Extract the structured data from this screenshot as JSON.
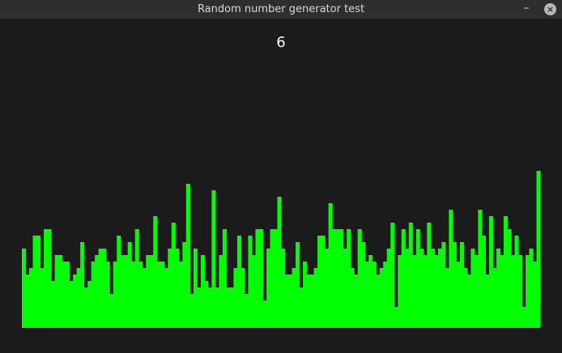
{
  "window": {
    "title": "Random number generator test",
    "minimize_glyph": "–",
    "close_glyph": "×"
  },
  "display": {
    "current_value": "6"
  },
  "colors": {
    "background": "#1b1b1b",
    "titlebar": "#2e2e2e",
    "bar": "#00ff00",
    "baseline": "#9a9a9a"
  },
  "chart_data": {
    "type": "bar",
    "title": "",
    "xlabel": "",
    "ylabel": "",
    "ylim": [
      0,
      200
    ],
    "values": [
      97,
      65,
      73,
      113,
      113,
      73,
      121,
      121,
      57,
      89,
      89,
      81,
      81,
      57,
      65,
      73,
      105,
      49,
      57,
      81,
      89,
      97,
      97,
      81,
      41,
      81,
      113,
      89,
      89,
      105,
      81,
      121,
      81,
      73,
      89,
      89,
      137,
      81,
      81,
      73,
      97,
      129,
      97,
      81,
      105,
      177,
      41,
      97,
      49,
      89,
      57,
      49,
      169,
      49,
      89,
      121,
      49,
      49,
      73,
      113,
      73,
      41,
      113,
      89,
      121,
      121,
      33,
      97,
      121,
      121,
      161,
      97,
      65,
      65,
      73,
      105,
      49,
      81,
      65,
      65,
      73,
      113,
      113,
      97,
      153,
      121,
      121,
      121,
      97,
      121,
      73,
      65,
      121,
      105,
      81,
      89,
      81,
      65,
      73,
      81,
      97,
      129,
      25,
      89,
      121,
      97,
      129,
      89,
      121,
      97,
      89,
      129,
      97,
      89,
      97,
      105,
      73,
      145,
      105,
      81,
      105,
      73,
      65,
      97,
      89,
      145,
      113,
      65,
      137,
      73,
      97,
      89,
      137,
      121,
      89,
      113,
      89,
      25,
      89,
      97,
      81,
      193
    ]
  }
}
